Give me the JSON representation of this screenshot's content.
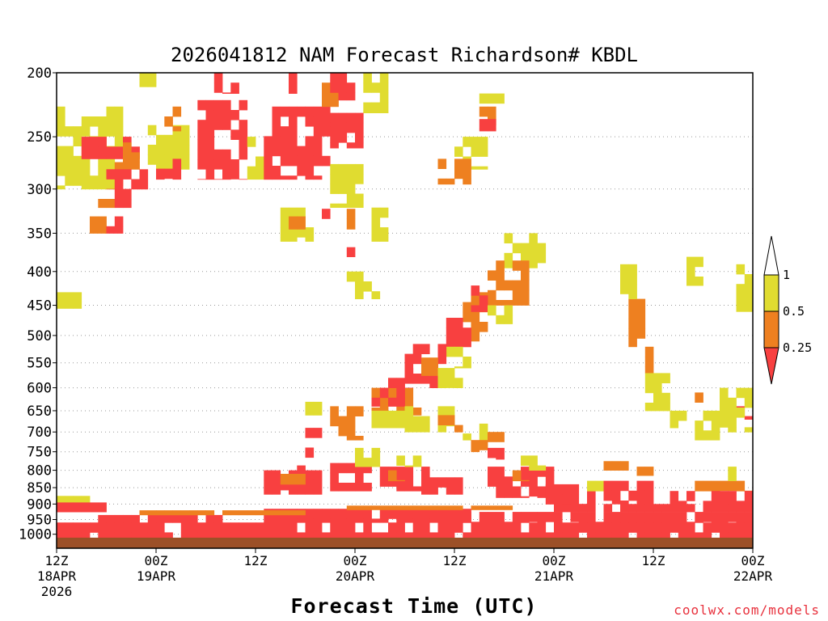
{
  "chart_data": {
    "type": "heatmap",
    "title": "2026041812 NAM Forecast Richardson# KBDL",
    "xlabel": "Forecast Time (UTC)",
    "ylabel": "",
    "y_scale": "log-pressure",
    "ylim": [
      1050,
      200
    ],
    "xlim_hours": [
      0,
      84
    ],
    "y_ticks": [
      200,
      250,
      300,
      350,
      400,
      450,
      500,
      550,
      600,
      650,
      700,
      750,
      800,
      850,
      900,
      950,
      1000
    ],
    "y_tick_labels": [
      "200",
      "250",
      "300",
      "350",
      "400",
      "450",
      "500",
      "550",
      "600",
      "650",
      "700",
      "750",
      "800",
      "850",
      "900",
      "950",
      "1000"
    ],
    "x_ticks": [
      {
        "hour": 0,
        "line1": "12Z",
        "line2": "18APR",
        "line3": "2026"
      },
      {
        "hour": 12,
        "line1": "00Z",
        "line2": "19APR",
        "line3": ""
      },
      {
        "hour": 24,
        "line1": "12Z",
        "line2": "",
        "line3": ""
      },
      {
        "hour": 36,
        "line1": "00Z",
        "line2": "20APR",
        "line3": ""
      },
      {
        "hour": 48,
        "line1": "12Z",
        "line2": "",
        "line3": ""
      },
      {
        "hour": 60,
        "line1": "00Z",
        "line2": "21APR",
        "line3": ""
      },
      {
        "hour": 72,
        "line1": "12Z",
        "line2": "",
        "line3": ""
      },
      {
        "hour": 84,
        "line1": "00Z",
        "line2": "22APR",
        "line3": ""
      }
    ],
    "gridlines": "dotted at pressure ticks",
    "colorbar": {
      "placement": "right",
      "labels": [
        "1",
        "0.5",
        "0.25"
      ],
      "bins": [
        {
          "range": "0.5-1",
          "color": "#e0dc30"
        },
        {
          "range": "0.25-0.5",
          "color": "#ee8020"
        },
        {
          "range": "<0.25",
          "color": "#f84040"
        }
      ],
      "extend_top_color": "#ffffff",
      "extend_bottom_color": "#f84040"
    },
    "surface_color": "#9c5028",
    "surface_pressure": 1012,
    "regions": [
      {
        "level": "y",
        "t0": 0,
        "t1": 8,
        "p_top": 225,
        "p_bot": 300
      },
      {
        "level": "r",
        "t0": 3,
        "t1": 10,
        "p_top": 250,
        "p_bot": 270
      },
      {
        "level": "o",
        "t0": 7,
        "t1": 10,
        "p_top": 255,
        "p_bot": 280
      },
      {
        "level": "r",
        "t0": 6,
        "t1": 11,
        "p_top": 280,
        "p_bot": 300
      },
      {
        "level": "o",
        "t0": 4,
        "t1": 7,
        "p_top": 300,
        "p_bot": 320
      },
      {
        "level": "r",
        "t0": 7,
        "t1": 9,
        "p_top": 300,
        "p_bot": 320
      },
      {
        "level": "o",
        "t0": 4,
        "t1": 6,
        "p_top": 330,
        "p_bot": 350
      },
      {
        "level": "r",
        "t0": 6,
        "t1": 8,
        "p_top": 330,
        "p_bot": 350
      },
      {
        "level": "y",
        "t0": 0,
        "t1": 3,
        "p_top": 430,
        "p_bot": 455
      },
      {
        "level": "y",
        "t0": 10,
        "t1": 12,
        "p_top": 200,
        "p_bot": 210
      },
      {
        "level": "y",
        "t0": 11,
        "t1": 16,
        "p_top": 240,
        "p_bot": 280
      },
      {
        "level": "r",
        "t0": 12,
        "t1": 15,
        "p_top": 270,
        "p_bot": 290
      },
      {
        "level": "o",
        "t0": 13,
        "t1": 15,
        "p_top": 225,
        "p_bot": 245
      },
      {
        "level": "r",
        "t0": 17,
        "t1": 23,
        "p_top": 220,
        "p_bot": 290
      },
      {
        "level": "r",
        "t0": 19,
        "t1": 22,
        "p_top": 200,
        "p_bot": 215
      },
      {
        "level": "y",
        "t0": 23,
        "t1": 25,
        "p_top": 250,
        "p_bot": 290
      },
      {
        "level": "r",
        "t0": 25,
        "t1": 33,
        "p_top": 225,
        "p_bot": 290
      },
      {
        "level": "r",
        "t0": 27,
        "t1": 29,
        "p_top": 200,
        "p_bot": 215
      },
      {
        "level": "o",
        "t0": 32,
        "t1": 34,
        "p_top": 200,
        "p_bot": 225
      },
      {
        "level": "r",
        "t0": 33,
        "t1": 37,
        "p_top": 200,
        "p_bot": 220
      },
      {
        "level": "y",
        "t0": 37,
        "t1": 40,
        "p_top": 200,
        "p_bot": 230
      },
      {
        "level": "r",
        "t0": 33,
        "t1": 37,
        "p_top": 230,
        "p_bot": 260
      },
      {
        "level": "y",
        "t0": 33,
        "t1": 37,
        "p_top": 275,
        "p_bot": 320
      },
      {
        "level": "o",
        "t0": 35,
        "t1": 36,
        "p_top": 300,
        "p_bot": 345
      },
      {
        "level": "r",
        "t0": 32,
        "t1": 33,
        "p_top": 300,
        "p_bot": 340
      },
      {
        "level": "y",
        "t0": 27,
        "t1": 31,
        "p_top": 320,
        "p_bot": 360
      },
      {
        "level": "o",
        "t0": 28,
        "t1": 30,
        "p_top": 330,
        "p_bot": 345
      },
      {
        "level": "r",
        "t0": 35,
        "t1": 36,
        "p_top": 355,
        "p_bot": 380
      },
      {
        "level": "y",
        "t0": 35,
        "t1": 39,
        "p_top": 400,
        "p_bot": 440
      },
      {
        "level": "y",
        "t0": 38,
        "t1": 40,
        "p_top": 320,
        "p_bot": 360
      },
      {
        "level": "y",
        "t0": 54,
        "t1": 59,
        "p_top": 350,
        "p_bot": 395
      },
      {
        "level": "o",
        "t0": 52,
        "t1": 57,
        "p_top": 385,
        "p_bot": 450
      },
      {
        "level": "o",
        "t0": 49,
        "t1": 52,
        "p_top": 430,
        "p_bot": 510
      },
      {
        "level": "r",
        "t0": 50,
        "t1": 52,
        "p_top": 420,
        "p_bot": 460
      },
      {
        "level": "y",
        "t0": 52,
        "t1": 55,
        "p_top": 450,
        "p_bot": 480
      },
      {
        "level": "r",
        "t0": 47,
        "t1": 50,
        "p_top": 470,
        "p_bot": 520
      },
      {
        "level": "y",
        "t0": 47,
        "t1": 50,
        "p_top": 520,
        "p_bot": 560
      },
      {
        "level": "r",
        "t0": 42,
        "t1": 47,
        "p_top": 515,
        "p_bot": 600
      },
      {
        "level": "o",
        "t0": 44,
        "t1": 46,
        "p_top": 540,
        "p_bot": 575
      },
      {
        "level": "y",
        "t0": 46,
        "t1": 49,
        "p_top": 560,
        "p_bot": 600
      },
      {
        "level": "o",
        "t0": 38,
        "t1": 44,
        "p_top": 600,
        "p_bot": 660
      },
      {
        "level": "r",
        "t0": 38,
        "t1": 42,
        "p_top": 600,
        "p_bot": 640
      },
      {
        "level": "r",
        "t0": 40,
        "t1": 43,
        "p_top": 560,
        "p_bot": 600
      },
      {
        "level": "o",
        "t0": 33,
        "t1": 37,
        "p_top": 640,
        "p_bot": 720
      },
      {
        "level": "y",
        "t0": 37,
        "t1": 42,
        "p_top": 650,
        "p_bot": 690
      },
      {
        "level": "y",
        "t0": 42,
        "t1": 48,
        "p_top": 640,
        "p_bot": 700
      },
      {
        "level": "o",
        "t0": 46,
        "t1": 49,
        "p_top": 660,
        "p_bot": 700
      },
      {
        "level": "y",
        "t0": 49,
        "t1": 52,
        "p_top": 680,
        "p_bot": 720
      },
      {
        "level": "o",
        "t0": 50,
        "t1": 52,
        "p_top": 720,
        "p_bot": 750
      },
      {
        "level": "r",
        "t0": 52,
        "t1": 54,
        "p_top": 740,
        "p_bot": 770
      },
      {
        "level": "o",
        "t0": 52,
        "t1": 54,
        "p_top": 700,
        "p_bot": 730
      },
      {
        "level": "y",
        "t0": 30,
        "t1": 32,
        "p_top": 630,
        "p_bot": 660
      },
      {
        "level": "r",
        "t0": 30,
        "t1": 32,
        "p_top": 690,
        "p_bot": 780
      },
      {
        "level": "r",
        "t0": 29,
        "t1": 31,
        "p_top": 760,
        "p_bot": 850
      },
      {
        "level": "r",
        "t0": 25,
        "t1": 32,
        "p_top": 800,
        "p_bot": 870
      },
      {
        "level": "o",
        "t0": 27,
        "t1": 30,
        "p_top": 810,
        "p_bot": 840
      },
      {
        "level": "r",
        "t0": 33,
        "t1": 38,
        "p_top": 780,
        "p_bot": 860
      },
      {
        "level": "y",
        "t0": 36,
        "t1": 39,
        "p_top": 740,
        "p_bot": 790
      },
      {
        "level": "r",
        "t0": 39,
        "t1": 45,
        "p_top": 790,
        "p_bot": 860
      },
      {
        "level": "o",
        "t0": 40,
        "t1": 42,
        "p_top": 800,
        "p_bot": 830
      },
      {
        "level": "y",
        "t0": 41,
        "t1": 44,
        "p_top": 760,
        "p_bot": 790
      },
      {
        "level": "r",
        "t0": 44,
        "t1": 49,
        "p_top": 820,
        "p_bot": 870
      },
      {
        "level": "r",
        "t0": 52,
        "t1": 60,
        "p_top": 790,
        "p_bot": 880
      },
      {
        "level": "o",
        "t0": 55,
        "t1": 57,
        "p_top": 800,
        "p_bot": 830
      },
      {
        "level": "y",
        "t0": 56,
        "t1": 59,
        "p_top": 760,
        "p_bot": 800
      },
      {
        "level": "r",
        "t0": 59,
        "t1": 65,
        "p_top": 840,
        "p_bot": 900
      },
      {
        "level": "y",
        "t0": 63,
        "t1": 66,
        "p_top": 830,
        "p_bot": 860
      },
      {
        "level": "o",
        "t0": 65,
        "t1": 70,
        "p_top": 775,
        "p_bot": 800
      },
      {
        "level": "r",
        "t0": 66,
        "t1": 72,
        "p_top": 830,
        "p_bot": 900
      },
      {
        "level": "o",
        "t0": 70,
        "t1": 72,
        "p_top": 790,
        "p_bot": 815
      },
      {
        "level": "r",
        "t0": 74,
        "t1": 76,
        "p_top": 860,
        "p_bot": 900
      },
      {
        "level": "o",
        "t0": 77,
        "t1": 84,
        "p_top": 830,
        "p_bot": 860
      },
      {
        "level": "y",
        "t0": 81,
        "t1": 84,
        "p_top": 790,
        "p_bot": 830
      },
      {
        "level": "r",
        "t0": 76,
        "t1": 84,
        "p_top": 860,
        "p_bot": 900
      },
      {
        "level": "r",
        "t0": 82,
        "t1": 84,
        "p_top": 640,
        "p_bot": 670
      },
      {
        "level": "y",
        "t0": 80,
        "t1": 84,
        "p_top": 600,
        "p_bot": 700
      },
      {
        "level": "o",
        "t0": 69,
        "t1": 71,
        "p_top": 440,
        "p_bot": 520
      },
      {
        "level": "o",
        "t0": 71,
        "t1": 72,
        "p_top": 520,
        "p_bot": 570
      },
      {
        "level": "y",
        "t0": 68,
        "t1": 70,
        "p_top": 390,
        "p_bot": 440
      },
      {
        "level": "y",
        "t0": 71,
        "t1": 74,
        "p_top": 570,
        "p_bot": 650
      },
      {
        "level": "y",
        "t0": 74,
        "t1": 76,
        "p_top": 650,
        "p_bot": 690
      },
      {
        "level": "y",
        "t0": 77,
        "t1": 80,
        "p_top": 650,
        "p_bot": 720
      },
      {
        "level": "o",
        "t0": 77,
        "t1": 78,
        "p_top": 610,
        "p_bot": 640
      },
      {
        "level": "y",
        "t0": 76,
        "t1": 78,
        "p_top": 380,
        "p_bot": 420
      },
      {
        "level": "y",
        "t0": 82,
        "t1": 84,
        "p_top": 390,
        "p_bot": 460
      },
      {
        "level": "y",
        "t0": 48,
        "t1": 52,
        "p_top": 250,
        "p_bot": 280
      },
      {
        "level": "o",
        "t0": 46,
        "t1": 50,
        "p_top": 270,
        "p_bot": 295
      },
      {
        "level": "o",
        "t0": 51,
        "t1": 53,
        "p_top": 225,
        "p_bot": 240
      },
      {
        "level": "r",
        "t0": 51,
        "t1": 53,
        "p_top": 235,
        "p_bot": 245
      },
      {
        "level": "y",
        "t0": 51,
        "t1": 54,
        "p_top": 215,
        "p_bot": 230
      }
    ],
    "surface_bands": [
      {
        "level": "r",
        "t0": 0,
        "t1": 84,
        "p_top": 960,
        "p_bot": 1012
      },
      {
        "level": "r",
        "t0": 5,
        "t1": 20,
        "p_top": 935,
        "p_bot": 960
      },
      {
        "level": "r",
        "t0": 25,
        "t1": 50,
        "p_top": 915,
        "p_bot": 960
      },
      {
        "level": "r",
        "t0": 48,
        "t1": 84,
        "p_top": 925,
        "p_bot": 960
      },
      {
        "level": "o",
        "t0": 10,
        "t1": 30,
        "p_top": 920,
        "p_bot": 935
      },
      {
        "level": "y",
        "t0": 0,
        "t1": 4,
        "p_top": 875,
        "p_bot": 895
      },
      {
        "level": "r",
        "t0": 0,
        "t1": 6,
        "p_top": 895,
        "p_bot": 925
      },
      {
        "level": "o",
        "t0": 35,
        "t1": 55,
        "p_top": 905,
        "p_bot": 918
      },
      {
        "level": "r",
        "t0": 60,
        "t1": 84,
        "p_top": 900,
        "p_bot": 925
      }
    ]
  }
}
